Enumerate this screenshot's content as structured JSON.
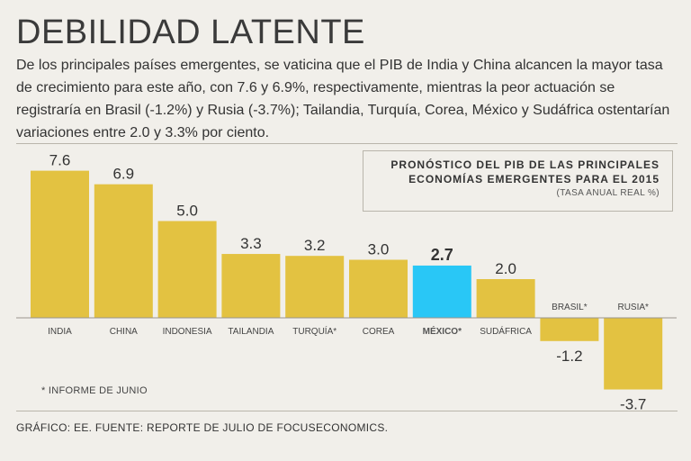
{
  "header": {
    "title": "DEBILIDAD LATENTE",
    "subtitle": "De los principales países emergentes, se vaticina que el PIB de India y China alcancen la mayor tasa de crecimiento para este año, con 7.6 y 6.9%, respectivamente, mientras la peor actuación se registraría en Brasil (-1.2%) y Rusia (-3.7%); Tailandia, Turquía, Corea, México y Sudáfrica ostentarían variaciones entre 2.0 y 3.3% por ciento."
  },
  "legend": {
    "title": "PRONÓSTICO DEL PIB DE LAS PRINCIPALES\nECONOMÍAS EMERGENTES PARA EL 2015",
    "subtitle": "(TASA ANUAL REAL %)"
  },
  "footnote": "* INFORME DE JUNIO",
  "source": "GRÁFICO: EE. FUENTE: REPORTE DE JULIO DE FOCUSECONOMICS.",
  "colors": {
    "bar": "#e3c241",
    "highlight": "#29c7f6",
    "axis": "#9a968d"
  },
  "chart_data": {
    "type": "bar",
    "title": "PRONÓSTICO DEL PIB DE LAS PRINCIPALES ECONOMÍAS EMERGENTES PARA EL 2015",
    "ylabel": "(TASA ANUAL REAL %)",
    "categories": [
      "INDIA",
      "CHINA",
      "INDONESIA",
      "TAILANDIA",
      "TURQUÍA*",
      "COREA",
      "MÉXICO*",
      "SUDÁFRICA",
      "BRASIL*",
      "RUSIA*"
    ],
    "values": [
      7.6,
      6.9,
      5.0,
      3.3,
      3.2,
      3.0,
      2.7,
      2.0,
      -1.2,
      -3.7
    ],
    "value_labels": [
      "7.6",
      "6.9",
      "5.0",
      "3.3",
      "3.2",
      "3.0",
      "2.7",
      "2.0",
      "-1.2",
      "-3.7"
    ],
    "highlight": "MÉXICO*",
    "ylim": [
      -3.7,
      7.6
    ]
  }
}
